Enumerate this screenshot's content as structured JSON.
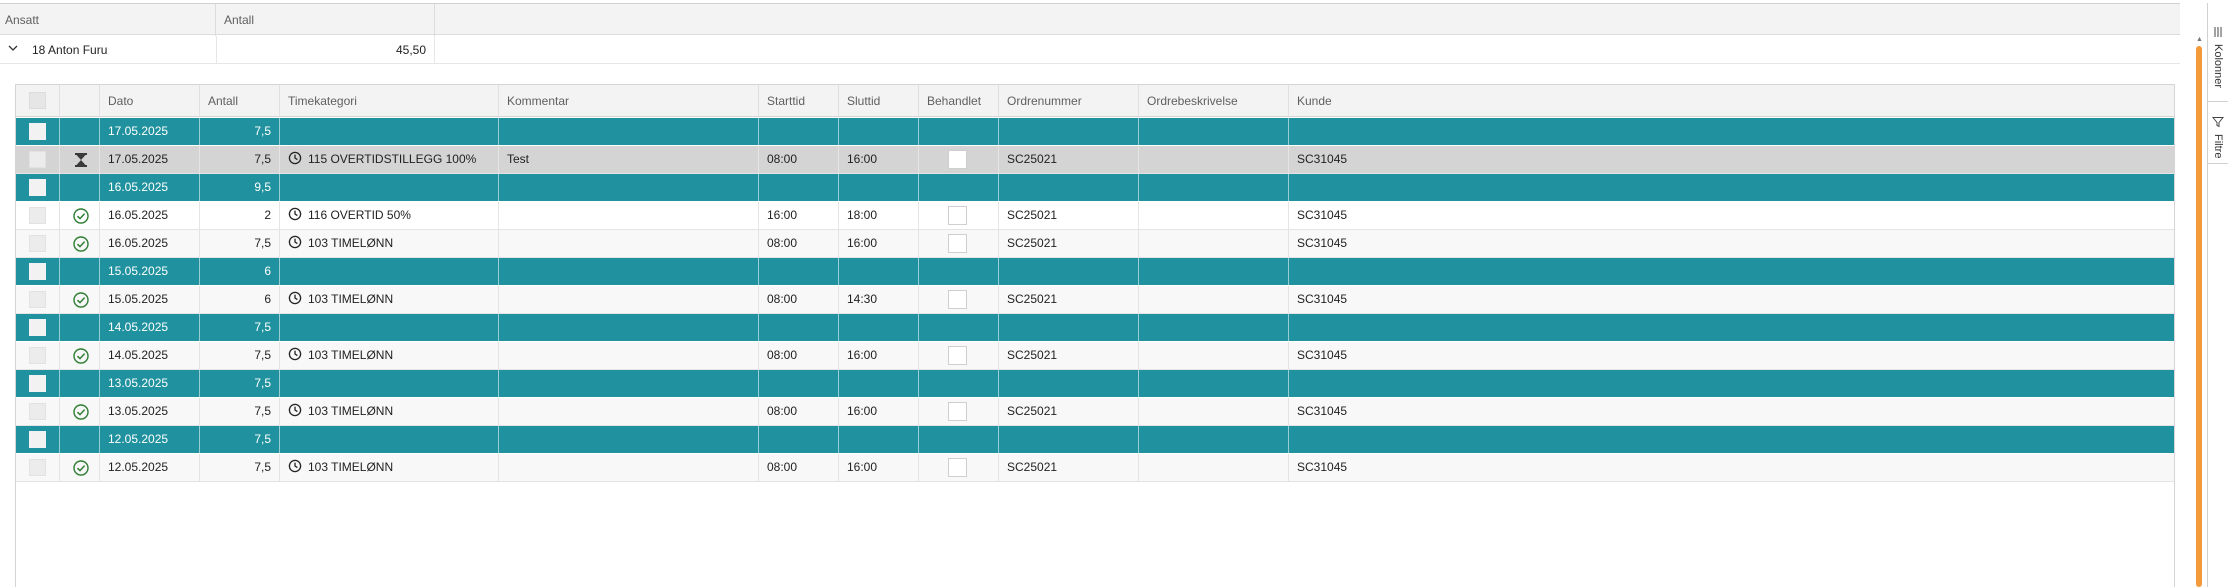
{
  "outer": {
    "columns": [
      "Ansatt",
      "Antall"
    ],
    "group": {
      "label": "18 Anton Furu",
      "value": "45,50"
    }
  },
  "detail": {
    "columns": [
      "Dato",
      "Antall",
      "Timekategori",
      "Kommentar",
      "Starttid",
      "Sluttid",
      "Behandlet",
      "Ordrenummer",
      "Ordrebeskrivelse",
      "Kunde"
    ],
    "rows": [
      {
        "kind": "group",
        "dato": "17.05.2025",
        "antall": "7,5"
      },
      {
        "kind": "item",
        "selected": true,
        "status": "hourglass",
        "dato": "17.05.2025",
        "antall": "7,5",
        "kategori": "115 OVERTIDSTILLEGG 100%",
        "kommentar": "Test",
        "start": "08:00",
        "slutt": "16:00",
        "ordre": "SC25021",
        "ordrebeskrivelse": "",
        "kunde": "SC31045"
      },
      {
        "kind": "group",
        "dato": "16.05.2025",
        "antall": "9,5"
      },
      {
        "kind": "item",
        "status": "check",
        "dato": "16.05.2025",
        "antall": "2",
        "kategori": "116 OVERTID 50%",
        "kommentar": "",
        "start": "16:00",
        "slutt": "18:00",
        "ordre": "SC25021",
        "ordrebeskrivelse": "",
        "kunde": "SC31045"
      },
      {
        "kind": "item",
        "status": "check",
        "dato": "16.05.2025",
        "antall": "7,5",
        "kategori": "103 TIMELØNN",
        "kommentar": "",
        "start": "08:00",
        "slutt": "16:00",
        "ordre": "SC25021",
        "ordrebeskrivelse": "",
        "kunde": "SC31045"
      },
      {
        "kind": "group",
        "dato": "15.05.2025",
        "antall": "6"
      },
      {
        "kind": "item",
        "status": "check",
        "dato": "15.05.2025",
        "antall": "6",
        "kategori": "103 TIMELØNN",
        "kommentar": "",
        "start": "08:00",
        "slutt": "14:30",
        "ordre": "SC25021",
        "ordrebeskrivelse": "",
        "kunde": "SC31045"
      },
      {
        "kind": "group",
        "dato": "14.05.2025",
        "antall": "7,5"
      },
      {
        "kind": "item",
        "status": "check",
        "dato": "14.05.2025",
        "antall": "7,5",
        "kategori": "103 TIMELØNN",
        "kommentar": "",
        "start": "08:00",
        "slutt": "16:00",
        "ordre": "SC25021",
        "ordrebeskrivelse": "",
        "kunde": "SC31045"
      },
      {
        "kind": "group",
        "dato": "13.05.2025",
        "antall": "7,5"
      },
      {
        "kind": "item",
        "status": "check",
        "dato": "13.05.2025",
        "antall": "7,5",
        "kategori": "103 TIMELØNN",
        "kommentar": "",
        "start": "08:00",
        "slutt": "16:00",
        "ordre": "SC25021",
        "ordrebeskrivelse": "",
        "kunde": "SC31045"
      },
      {
        "kind": "group",
        "dato": "12.05.2025",
        "antall": "7,5"
      },
      {
        "kind": "item",
        "status": "check",
        "dato": "12.05.2025",
        "antall": "7,5",
        "kategori": "103 TIMELØNN",
        "kommentar": "",
        "start": "08:00",
        "slutt": "16:00",
        "ordre": "SC25021",
        "ordrebeskrivelse": "",
        "kunde": "SC31045"
      }
    ]
  },
  "sidebar": {
    "columns_label": "Kolonner",
    "filter_label": "Filtre"
  },
  "colors": {
    "group_row": "#20919e",
    "selected_row": "#d4d4d4",
    "scroll_accent": "#f49a3a",
    "check_icon": "#2e7d32"
  },
  "icons": {
    "expand": "chevron-down-icon",
    "pending": "hourglass-icon",
    "approved": "check-circle-icon",
    "category": "clock-icon",
    "columns": "columns-icon",
    "filter": "filter-icon"
  }
}
